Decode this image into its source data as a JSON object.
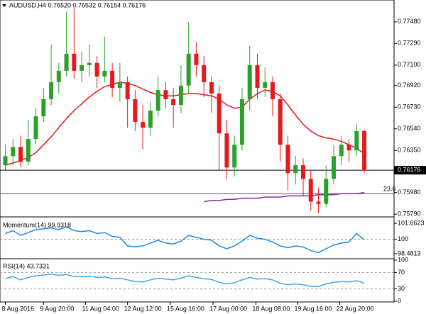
{
  "chart_data": [
    {
      "type": "candlestick",
      "title": "AUDUSD,H4  0.76520 0.76532 0.76154 0.76176",
      "up_color": "#2ca02c",
      "down_color": "#e41a1c",
      "candles": [
        [
          0.7622,
          0.764,
          0.7618,
          0.763
        ],
        [
          0.763,
          0.7645,
          0.7622,
          0.7638
        ],
        [
          0.7638,
          0.7648,
          0.762,
          0.7625
        ],
        [
          0.7625,
          0.7662,
          0.7622,
          0.7645
        ],
        [
          0.7645,
          0.7672,
          0.764,
          0.7665
        ],
        [
          0.7665,
          0.769,
          0.766,
          0.768
        ],
        [
          0.768,
          0.7728,
          0.7675,
          0.7695
        ],
        [
          0.7695,
          0.7712,
          0.7685,
          0.7705
        ],
        [
          0.7705,
          0.7757,
          0.77,
          0.772
        ],
        [
          0.772,
          0.776,
          0.7698,
          0.7705
        ],
        [
          0.7705,
          0.7722,
          0.7695,
          0.771
        ],
        [
          0.771,
          0.7728,
          0.77,
          0.7712
        ],
        [
          0.7712,
          0.7718,
          0.769,
          0.77
        ],
        [
          0.77,
          0.7735,
          0.7695,
          0.7705
        ],
        [
          0.7705,
          0.7712,
          0.7682,
          0.769
        ],
        [
          0.769,
          0.7712,
          0.7678,
          0.7695
        ],
        [
          0.7695,
          0.77,
          0.7655,
          0.768
        ],
        [
          0.768,
          0.7688,
          0.7652,
          0.766
        ],
        [
          0.766,
          0.7675,
          0.7636,
          0.7655
        ],
        [
          0.7655,
          0.7678,
          0.7648,
          0.767
        ],
        [
          0.767,
          0.77,
          0.7665,
          0.7688
        ],
        [
          0.7688,
          0.7695,
          0.7672,
          0.768
        ],
        [
          0.768,
          0.769,
          0.7655,
          0.7675
        ],
        [
          0.7675,
          0.771,
          0.7668,
          0.7692
        ],
        [
          0.7692,
          0.7748,
          0.7685,
          0.772
        ],
        [
          0.772,
          0.773,
          0.77,
          0.771
        ],
        [
          0.771,
          0.7718,
          0.7682,
          0.7695
        ],
        [
          0.7695,
          0.77,
          0.7668,
          0.7685
        ],
        [
          0.7685,
          0.7692,
          0.7618,
          0.765
        ],
        [
          0.765,
          0.7662,
          0.761,
          0.762
        ],
        [
          0.762,
          0.7648,
          0.7612,
          0.764
        ],
        [
          0.764,
          0.769,
          0.7635,
          0.768
        ],
        [
          0.768,
          0.7727,
          0.767,
          0.771
        ],
        [
          0.771,
          0.772,
          0.768,
          0.769
        ],
        [
          0.769,
          0.7708,
          0.7682,
          0.7695
        ],
        [
          0.7695,
          0.77,
          0.7665,
          0.768
        ],
        [
          0.768,
          0.7685,
          0.7625,
          0.764
        ],
        [
          0.764,
          0.7648,
          0.76,
          0.7615
        ],
        [
          0.7615,
          0.763,
          0.7605,
          0.7622
        ],
        [
          0.7622,
          0.7628,
          0.7595,
          0.761
        ],
        [
          0.761,
          0.7618,
          0.7582,
          0.759
        ],
        [
          0.759,
          0.7602,
          0.758,
          0.7588
        ],
        [
          0.7588,
          0.7622,
          0.7585,
          0.761
        ],
        [
          0.761,
          0.764,
          0.7605,
          0.763
        ],
        [
          0.763,
          0.7648,
          0.7622,
          0.764
        ],
        [
          0.764,
          0.7645,
          0.7625,
          0.7635
        ],
        [
          0.7635,
          0.7658,
          0.763,
          0.7652
        ],
        [
          0.7652,
          0.76532,
          0.76154,
          0.76176
        ]
      ],
      "series": [
        {
          "color": "#e41a1c",
          "values": [
            0.7622,
            0.7624,
            0.7626,
            0.7629,
            0.7633,
            0.764,
            0.7647,
            0.7655,
            0.7663,
            0.767,
            0.7676,
            0.7682,
            0.7687,
            0.7691,
            0.7693,
            0.7695,
            0.7694,
            0.7692,
            0.7689,
            0.7686,
            0.7684,
            0.7683,
            0.7683,
            0.7684,
            0.7685,
            0.7685,
            0.7684,
            0.7683,
            0.768,
            0.7675,
            0.7672,
            0.7673,
            0.768,
            0.7685,
            0.7688,
            0.7687,
            0.7683,
            0.7675,
            0.7666,
            0.7658,
            0.7652,
            0.7648,
            0.7646,
            0.7645,
            0.7643,
            0.764,
            0.7637,
            0.7632
          ]
        },
        {
          "color": "#8e24aa",
          "values": [
            null,
            null,
            null,
            null,
            null,
            null,
            null,
            null,
            null,
            null,
            null,
            null,
            null,
            null,
            null,
            null,
            null,
            null,
            null,
            null,
            null,
            null,
            null,
            null,
            null,
            null,
            0.759,
            0.7591,
            0.7591,
            0.7592,
            0.7592,
            0.7593,
            0.7593,
            0.7593,
            0.7594,
            0.7594,
            0.7594,
            0.7595,
            0.7595,
            0.7595,
            0.7595,
            0.7596,
            0.7596,
            0.7596,
            0.7597,
            0.7597,
            0.7597,
            0.7598
          ]
        }
      ],
      "ylim": [
        0.75772,
        0.77666
      ],
      "yticks": [
        {
          "value": 0.7748,
          "label": "0.77480"
        },
        {
          "value": 0.7729,
          "label": "0.77290"
        },
        {
          "value": 0.771,
          "label": "0.77100"
        },
        {
          "value": 0.7692,
          "label": "0.76920"
        },
        {
          "value": 0.7673,
          "label": "0.76730"
        },
        {
          "value": 0.7654,
          "label": "0.76540"
        },
        {
          "value": 0.7635,
          "label": "0.76350"
        },
        {
          "value": 0.7598,
          "label": "0.75980"
        },
        {
          "value": 0.7579,
          "label": "0.75790"
        }
      ],
      "last_price": {
        "value": 0.76176,
        "label": "0.76176"
      },
      "levels": [
        {
          "value": 0.7597,
          "label": "23.6"
        }
      ],
      "xlim": [
        -0.7,
        50.9
      ],
      "xticks": [
        {
          "value": 0,
          "label": "8 Aug 2016"
        },
        {
          "value": 5,
          "label": "9 Aug 20:00"
        },
        {
          "value": 10.5,
          "label": "11 Aug 04:00"
        },
        {
          "value": 16,
          "label": "12 Aug 12:00"
        },
        {
          "value": 21.6,
          "label": "15 Aug 16:00"
        },
        {
          "value": 27.2,
          "label": "17 Aug 00:00"
        },
        {
          "value": 32.8,
          "label": "18 Aug 08:00"
        },
        {
          "value": 38.3,
          "label": "19 Aug 16:00"
        },
        {
          "value": 43.8,
          "label": "22 Aug 20:00"
        }
      ]
    },
    {
      "type": "line",
      "title": "Momentum(14) 99.9318",
      "color": "#1e88e5",
      "values": [
        100.6,
        100.9,
        100.4,
        100.7,
        101.0,
        101.1,
        101.2,
        101.0,
        101.3,
        100.9,
        100.8,
        100.9,
        100.6,
        100.7,
        100.3,
        100.2,
        99.3,
        99.2,
        99.3,
        99.6,
        99.9,
        99.6,
        99.5,
        99.8,
        100.4,
        100.2,
        100.0,
        99.9,
        99.3,
        99.0,
        99.3,
        99.8,
        100.4,
        100.1,
        100.0,
        99.7,
        99.3,
        99.1,
        99.3,
        99.2,
        98.8,
        98.6,
        99.0,
        99.4,
        99.6,
        99.7,
        100.6,
        99.9318
      ],
      "ylim": [
        98.03,
        102.27
      ],
      "yticks": [
        101.6623,
        100,
        98.4813
      ],
      "levels": [
        100
      ]
    },
    {
      "type": "line",
      "title": "RSI(14) 43.7331",
      "color": "#42a5f5",
      "values": [
        55,
        60,
        52,
        58,
        62,
        64,
        66,
        63,
        65,
        60,
        60,
        61,
        58,
        59,
        55,
        56,
        52,
        48,
        47,
        52,
        56,
        54,
        52,
        56,
        62,
        58,
        55,
        53,
        46,
        42,
        45,
        52,
        58,
        54,
        55,
        52,
        44,
        40,
        42,
        40,
        36,
        36,
        42,
        46,
        48,
        47,
        50,
        43.7331
      ],
      "ylim": [
        0,
        100
      ],
      "yticks": [
        100,
        70,
        30,
        0
      ],
      "levels": [
        70,
        30
      ]
    }
  ]
}
